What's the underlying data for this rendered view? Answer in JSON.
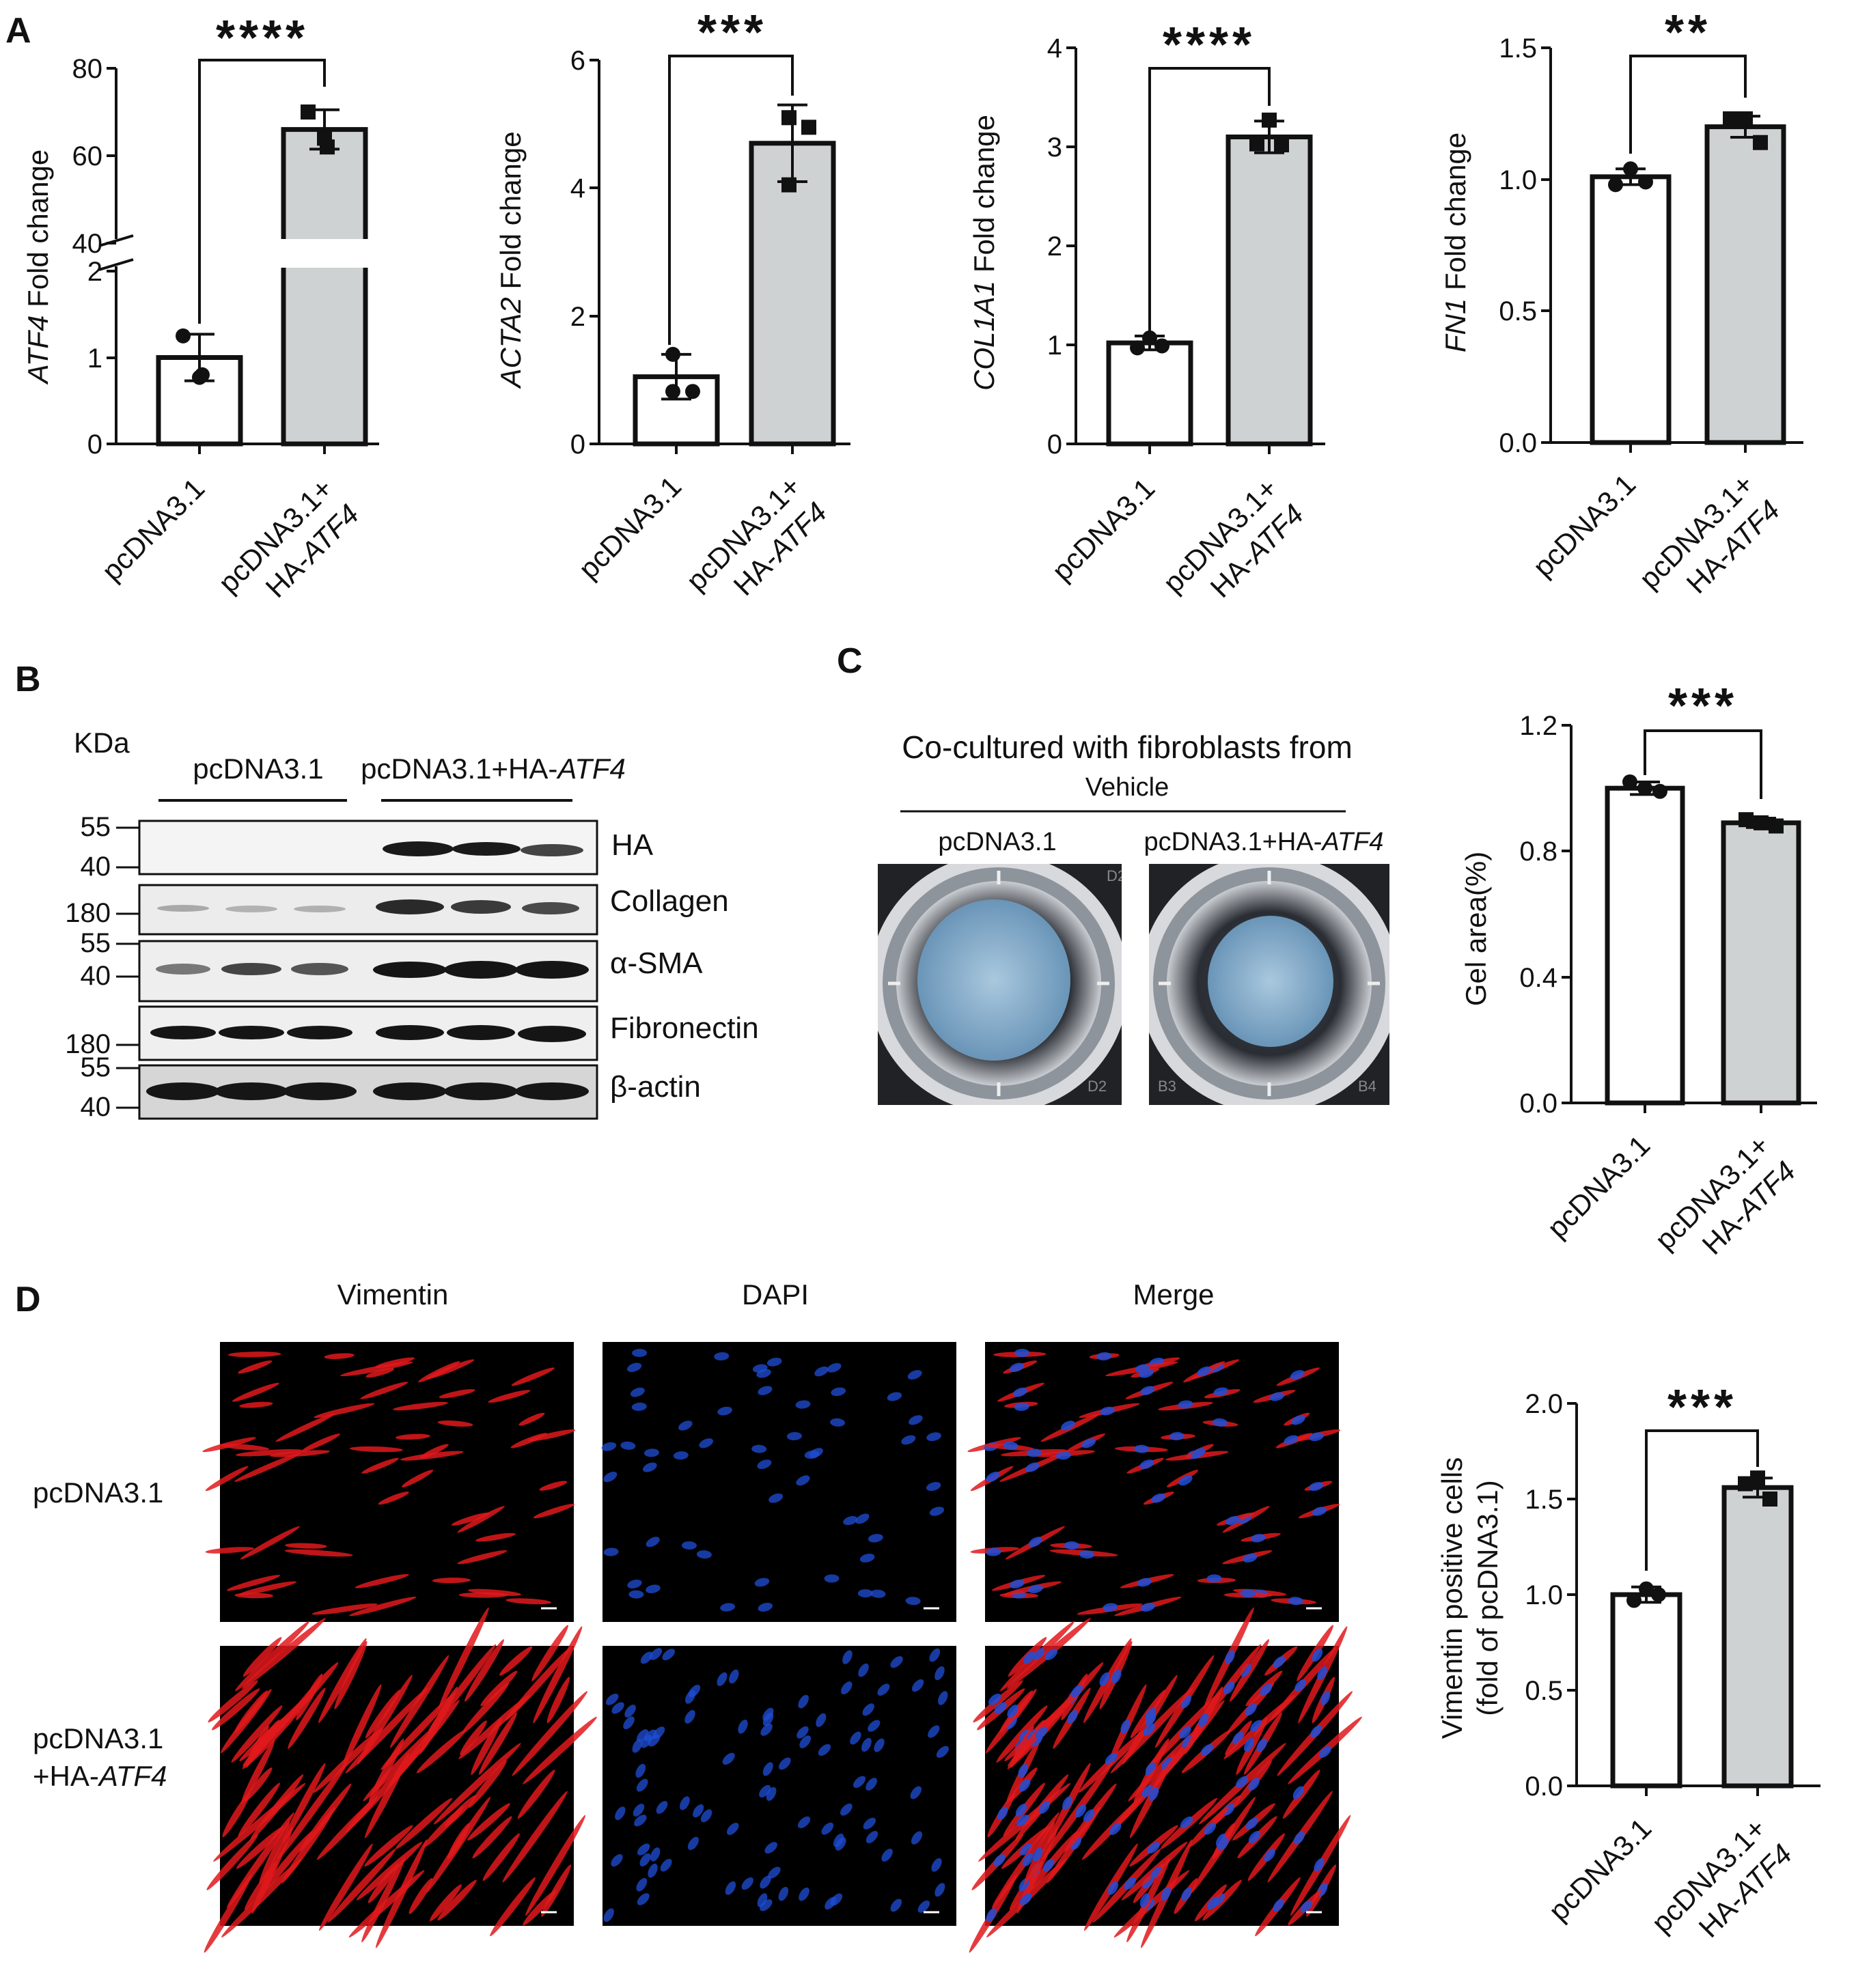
{
  "panel_letters": {
    "a": "A",
    "b": "B",
    "c": "C",
    "d": "D"
  },
  "panel_a": {
    "charts": [
      {
        "ylabel_gene": "ATF4",
        "ylabel_rest": " Fold change",
        "ticks": [
          "0",
          "1",
          "2",
          "40",
          "60",
          "80"
        ],
        "categories": [
          "pcDNA3.1",
          "pcDNA3.1+",
          "HA-ATF4"
        ],
        "sig": "****"
      },
      {
        "ylabel_gene": "ACTA2",
        "ylabel_rest": " Fold change",
        "ticks": [
          "0",
          "2",
          "4",
          "6"
        ],
        "categories": [
          "pcDNA3.1",
          "pcDNA3.1+",
          "HA-ATF4"
        ],
        "sig": "***"
      },
      {
        "ylabel_gene": "COL1A1",
        "ylabel_rest": " Fold change",
        "ticks": [
          "0",
          "1",
          "2",
          "3",
          "4"
        ],
        "categories": [
          "pcDNA3.1",
          "pcDNA3.1+",
          "HA-ATF4"
        ],
        "sig": "****"
      },
      {
        "ylabel_gene": "FN1",
        "ylabel_rest": " Fold change",
        "ticks": [
          "0.0",
          "0.5",
          "1.0",
          "1.5"
        ],
        "categories": [
          "pcDNA3.1",
          "pcDNA3.1+",
          "HA-ATF4"
        ],
        "sig": "**"
      }
    ]
  },
  "panel_b": {
    "kda_label": "KDa",
    "group1": "pcDNA3.1",
    "group2_prefix": "pcDNA3.1+HA-",
    "group2_gene": "ATF4",
    "markers": [
      "55",
      "40",
      "180",
      "55",
      "40",
      "180",
      "55",
      "40"
    ],
    "bands": [
      "HA",
      "Collagen",
      "α-SMA",
      "Fibronectin",
      "β-actin"
    ]
  },
  "panel_c": {
    "title": "Co-cultured with fibroblasts from",
    "subtitle": "Vehicle",
    "label_left": "pcDNA3.1",
    "label_right_prefix": "pcDNA3.1+HA-",
    "label_right_gene": "ATF4",
    "well_labels": [
      "D2",
      "B3",
      "B4"
    ],
    "chart": {
      "ylabel": "Gel area(%)",
      "ticks": [
        "0.0",
        "0.4",
        "0.8",
        "1.2"
      ],
      "categories": [
        "pcDNA3.1",
        "pcDNA3.1+",
        "HA-ATF4"
      ],
      "sig": "***"
    }
  },
  "panel_d": {
    "col_headers": [
      "Vimentin",
      "DAPI",
      "Merge"
    ],
    "row1": "pcDNA3.1",
    "row2a": "pcDNA3.1",
    "row2b_prefix": "+HA-",
    "row2b_gene": "ATF4",
    "chart": {
      "ylabel1": "Vimentin positive cells",
      "ylabel2": "(fold of pcDNA3.1)",
      "ticks": [
        "0.0",
        "0.5",
        "1.0",
        "1.5",
        "2.0"
      ],
      "categories": [
        "pcDNA3.1",
        "pcDNA3.1+",
        "HA-ATF4"
      ],
      "sig": "***"
    }
  },
  "colors": {
    "control_bar": "#ffffff",
    "treated_bar": "#cfd2d2",
    "red": "#e0191c",
    "blue": "#1f4fd8"
  },
  "chart_data": [
    {
      "type": "bar",
      "panel": "A1",
      "categories": [
        "pcDNA3.1",
        "pcDNA3.1+HA-ATF4"
      ],
      "values": [
        1.0,
        66
      ],
      "errors": [
        0.27,
        4.5
      ],
      "ylim": [
        0,
        80
      ],
      "axis_break": [
        2,
        40
      ],
      "points": [
        [
          1.25,
          0.77,
          0.8
        ],
        [
          70,
          64,
          62
        ]
      ],
      "ylabel": "ATF4 Fold change",
      "sig": "****"
    },
    {
      "type": "bar",
      "panel": "A2",
      "categories": [
        "pcDNA3.1",
        "pcDNA3.1+HA-ATF4"
      ],
      "values": [
        1.05,
        4.7
      ],
      "errors": [
        0.35,
        0.6
      ],
      "ylim": [
        0,
        6
      ],
      "points": [
        [
          1.4,
          0.82,
          0.82
        ],
        [
          5.1,
          4.95,
          4.05
        ]
      ],
      "ylabel": "ACTA2 Fold change",
      "sig": "***"
    },
    {
      "type": "bar",
      "panel": "A3",
      "categories": [
        "pcDNA3.1",
        "pcDNA3.1+HA-ATF4"
      ],
      "values": [
        1.02,
        3.1
      ],
      "errors": [
        0.07,
        0.16
      ],
      "ylim": [
        0,
        4
      ],
      "points": [
        [
          1.07,
          0.97,
          0.99
        ],
        [
          3.27,
          3.03,
          3.02
        ]
      ],
      "ylabel": "COL1A1 Fold change",
      "sig": "****"
    },
    {
      "type": "bar",
      "panel": "A4",
      "categories": [
        "pcDNA3.1",
        "pcDNA3.1+HA-ATF4"
      ],
      "values": [
        1.01,
        1.2
      ],
      "errors": [
        0.03,
        0.04
      ],
      "ylim": [
        0,
        1.5
      ],
      "points": [
        [
          1.04,
          0.98,
          0.99
        ],
        [
          1.23,
          1.23,
          1.14
        ]
      ],
      "ylabel": "FN1 Fold change",
      "sig": "**"
    },
    {
      "type": "bar",
      "panel": "C",
      "categories": [
        "pcDNA3.1",
        "pcDNA3.1+HA-ATF4"
      ],
      "values": [
        1.0,
        0.89
      ],
      "errors": [
        0.02,
        0.015
      ],
      "ylim": [
        0,
        1.2
      ],
      "points": [
        [
          1.0,
          1.02,
          0.99
        ],
        [
          0.89,
          0.9,
          0.88
        ]
      ],
      "ylabel": "Gel area(%)",
      "sig": "***"
    },
    {
      "type": "bar",
      "panel": "D",
      "categories": [
        "pcDNA3.1",
        "pcDNA3.1+HA-ATF4"
      ],
      "values": [
        1.0,
        1.56
      ],
      "errors": [
        0.04,
        0.05
      ],
      "ylim": [
        0,
        2.0
      ],
      "points": [
        [
          1.03,
          0.97,
          1.0
        ],
        [
          1.61,
          1.58,
          1.5
        ]
      ],
      "ylabel": "Vimentin positive cells (fold of pcDNA3.1)",
      "sig": "***"
    }
  ]
}
